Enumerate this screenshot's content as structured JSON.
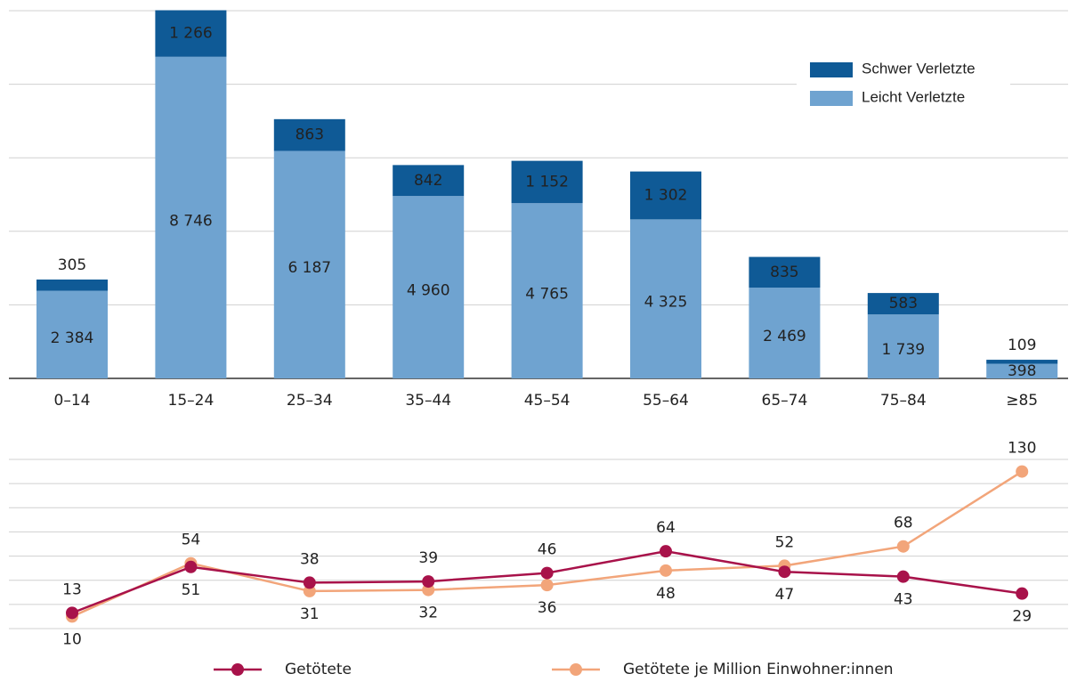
{
  "chart_data": [
    {
      "type": "bar",
      "stacked": true,
      "categories": [
        "0–14",
        "15–24",
        "25–34",
        "35–44",
        "45–54",
        "55–64",
        "65–74",
        "75–84",
        "≥85"
      ],
      "series": [
        {
          "name": "Leicht Verletzte",
          "color": "#6fa3d0",
          "values": [
            2384,
            8746,
            6187,
            4960,
            4765,
            4325,
            2469,
            1739,
            398
          ],
          "value_labels": [
            "2 384",
            "8 746",
            "6 187",
            "4 960",
            "4 765",
            "4 325",
            "2 469",
            "1 739",
            "398"
          ]
        },
        {
          "name": "Schwer Verletzte",
          "color": "#0f5a96",
          "values": [
            305,
            1266,
            863,
            842,
            1152,
            1302,
            835,
            583,
            109
          ],
          "value_labels": [
            "305",
            "1 266",
            "863",
            "842",
            "1 152",
            "1 302",
            "835",
            "583",
            "109"
          ]
        }
      ],
      "ylim": [
        0,
        10000
      ],
      "yticks": [
        0,
        2000,
        4000,
        6000,
        8000,
        10000
      ],
      "grid": true,
      "legend": "upper right"
    },
    {
      "type": "line",
      "categories": [
        "0–14",
        "15–24",
        "25–34",
        "35–44",
        "45–54",
        "55–64",
        "65–74",
        "75–84",
        "≥85"
      ],
      "series": [
        {
          "name": "Getötete",
          "color": "#a8124a",
          "label_color": "#a8124a",
          "values": [
            13,
            51,
            38,
            39,
            46,
            64,
            47,
            43,
            29
          ]
        },
        {
          "name": "Getötete je Million Einwohner:innen",
          "color": "#f2a57a",
          "label_color": "#d8875a",
          "values": [
            10,
            54,
            31,
            32,
            36,
            48,
            52,
            68,
            130
          ]
        }
      ],
      "ylim": [
        0,
        140
      ],
      "yticks": [
        0,
        20,
        40,
        60,
        80,
        100,
        120,
        140
      ],
      "grid": true,
      "legend": "lower center"
    }
  ]
}
